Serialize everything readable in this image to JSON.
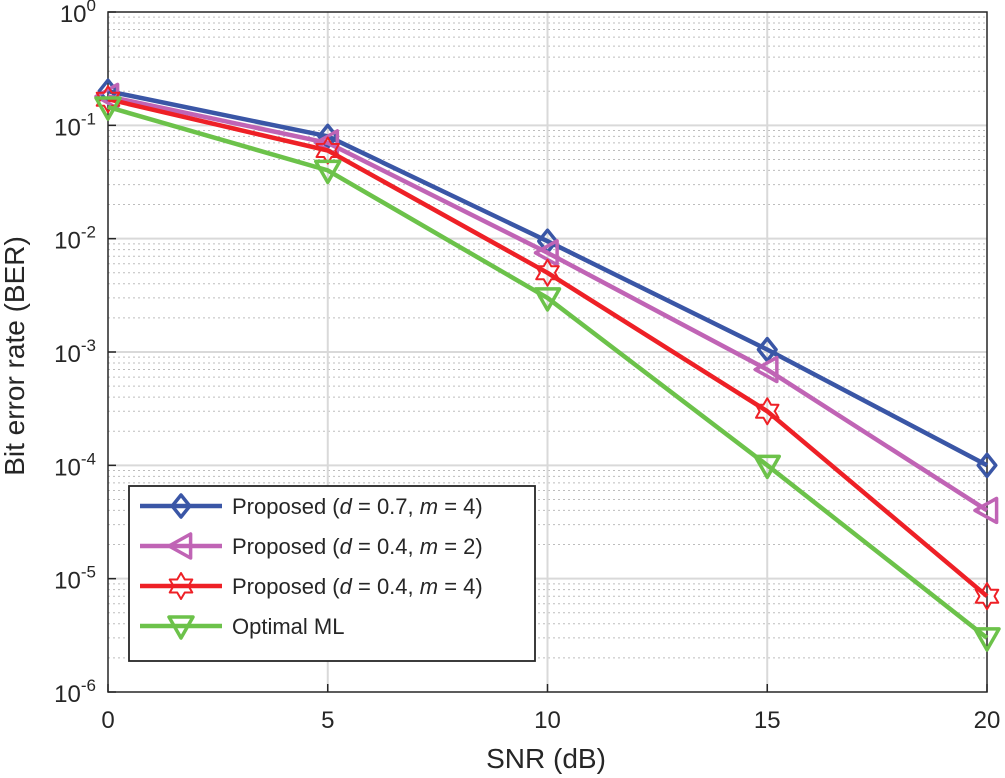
{
  "chart_data": {
    "type": "line",
    "xlabel": "SNR (dB)",
    "ylabel": "Bit error rate (BER)",
    "xlim": [
      0,
      20
    ],
    "ylim": [
      1e-06,
      1
    ],
    "yscale": "log",
    "grid": true,
    "legend_position": "bottom-left",
    "x": [
      0,
      5,
      10,
      15,
      20
    ],
    "x_ticks": [
      "0",
      "5",
      "10",
      "15",
      "20"
    ],
    "y_ticks": [
      {
        "base": "10",
        "exp": "-6"
      },
      {
        "base": "10",
        "exp": "-5"
      },
      {
        "base": "10",
        "exp": "-4"
      },
      {
        "base": "10",
        "exp": "-3"
      },
      {
        "base": "10",
        "exp": "-2"
      },
      {
        "base": "10",
        "exp": "-1"
      },
      {
        "base": "10",
        "exp": "0"
      }
    ],
    "series": [
      {
        "name": "Proposed (d = 0.7, m = 4)",
        "label_parts": [
          "Proposed (",
          "d",
          " = 0.7, ",
          "m",
          " = 4)"
        ],
        "color": "#3a56a6",
        "marker": "diamond",
        "values": [
          0.2,
          0.08,
          0.0095,
          0.00105,
          0.0001
        ]
      },
      {
        "name": "Proposed (d = 0.4, m = 2)",
        "label_parts": [
          "Proposed (",
          "d",
          " = 0.4, ",
          "m",
          " = 2)"
        ],
        "color": "#c064b5",
        "marker": "triangle-left",
        "values": [
          0.18,
          0.07,
          0.0075,
          0.0007,
          4e-05
        ]
      },
      {
        "name": "Proposed (d = 0.4, m = 4)",
        "label_parts": [
          "Proposed (",
          "d",
          " = 0.4, ",
          "m",
          " = 4)"
        ],
        "color": "#ee2026",
        "marker": "hexagram",
        "values": [
          0.17,
          0.06,
          0.005,
          0.0003,
          7e-06
        ]
      },
      {
        "name": "Optimal ML",
        "label_parts": [
          "Optimal ML"
        ],
        "color": "#6cc24a",
        "marker": "triangle-down",
        "values": [
          0.145,
          0.04,
          0.003,
          0.0001,
          3e-06
        ]
      }
    ]
  }
}
